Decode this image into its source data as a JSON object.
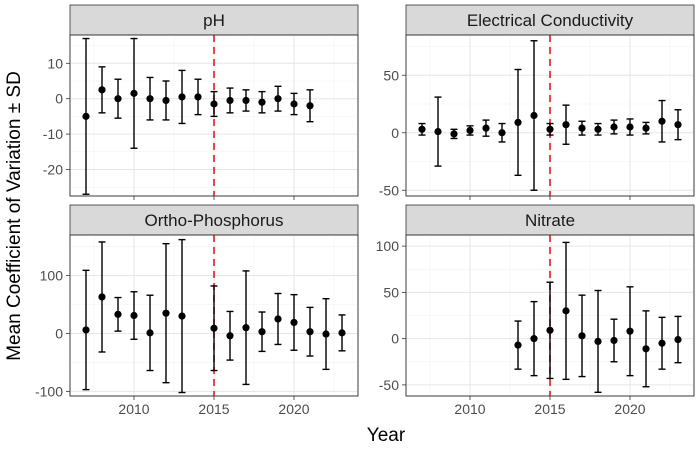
{
  "chart_data": {
    "type": "scatter",
    "xlabel": "Year",
    "ylabel": "Mean Coefficient of Variation ± SD",
    "reference_line": {
      "x": 2015,
      "color": "#e41a1c",
      "style": "dashed"
    },
    "xlim": [
      2006,
      2024
    ],
    "x_ticks": [
      2010,
      2015,
      2020
    ],
    "panels": [
      {
        "title": "pH",
        "ylim": [
          -27.5,
          18
        ],
        "y_ticks": [
          -20,
          -10,
          0,
          10
        ],
        "y_tick_labels": [
          "-20",
          "-10",
          "0",
          "10"
        ],
        "points": [
          {
            "x": 2007,
            "mean": -5,
            "sd": 22
          },
          {
            "x": 2008,
            "mean": 2.5,
            "sd": 6.5
          },
          {
            "x": 2009,
            "mean": 0,
            "sd": 5.5
          },
          {
            "x": 2010,
            "mean": 1.5,
            "sd": 15.5
          },
          {
            "x": 2011,
            "mean": 0,
            "sd": 6
          },
          {
            "x": 2012,
            "mean": -0.5,
            "sd": 5.5
          },
          {
            "x": 2013,
            "mean": 0.5,
            "sd": 7.5
          },
          {
            "x": 2014,
            "mean": 0.5,
            "sd": 5
          },
          {
            "x": 2015,
            "mean": -1.5,
            "sd": 3.5
          },
          {
            "x": 2016,
            "mean": -0.5,
            "sd": 3.5
          },
          {
            "x": 2017,
            "mean": -0.5,
            "sd": 3
          },
          {
            "x": 2018,
            "mean": -1,
            "sd": 3
          },
          {
            "x": 2019,
            "mean": 0,
            "sd": 3.5
          },
          {
            "x": 2020,
            "mean": -1.5,
            "sd": 3
          },
          {
            "x": 2021,
            "mean": -2,
            "sd": 4.5
          }
        ]
      },
      {
        "title": "Electrical Conductivity",
        "ylim": [
          -55,
          85
        ],
        "y_ticks": [
          -50,
          0,
          50
        ],
        "y_tick_labels": [
          "-50",
          "0",
          "50"
        ],
        "points": [
          {
            "x": 2007,
            "mean": 3,
            "sd": 5
          },
          {
            "x": 2008,
            "mean": 1,
            "sd": 30
          },
          {
            "x": 2009,
            "mean": -1,
            "sd": 4
          },
          {
            "x": 2010,
            "mean": 2,
            "sd": 4
          },
          {
            "x": 2011,
            "mean": 4,
            "sd": 7
          },
          {
            "x": 2012,
            "mean": 0,
            "sd": 8
          },
          {
            "x": 2013,
            "mean": 9,
            "sd": 46
          },
          {
            "x": 2014,
            "mean": 15,
            "sd": 65
          },
          {
            "x": 2015,
            "mean": 3,
            "sd": 5
          },
          {
            "x": 2016,
            "mean": 7,
            "sd": 17
          },
          {
            "x": 2017,
            "mean": 4,
            "sd": 6
          },
          {
            "x": 2018,
            "mean": 3,
            "sd": 5
          },
          {
            "x": 2019,
            "mean": 5,
            "sd": 6
          },
          {
            "x": 2020,
            "mean": 5,
            "sd": 7
          },
          {
            "x": 2021,
            "mean": 4,
            "sd": 5
          },
          {
            "x": 2022,
            "mean": 10,
            "sd": 18
          },
          {
            "x": 2023,
            "mean": 7,
            "sd": 13
          }
        ]
      },
      {
        "title": "Ortho-Phosphorus",
        "ylim": [
          -108,
          170
        ],
        "y_ticks": [
          -100,
          0,
          100
        ],
        "y_tick_labels": [
          "-100",
          "0",
          "100"
        ],
        "points": [
          {
            "x": 2007,
            "mean": 6,
            "sd": 103
          },
          {
            "x": 2008,
            "mean": 63,
            "sd": 95
          },
          {
            "x": 2009,
            "mean": 33,
            "sd": 29
          },
          {
            "x": 2010,
            "mean": 31,
            "sd": 41
          },
          {
            "x": 2011,
            "mean": 1,
            "sd": 65
          },
          {
            "x": 2012,
            "mean": 35,
            "sd": 120
          },
          {
            "x": 2013,
            "mean": 30,
            "sd": 132
          },
          {
            "x": 2015,
            "mean": 9,
            "sd": 73
          },
          {
            "x": 2016,
            "mean": -4,
            "sd": 42
          },
          {
            "x": 2017,
            "mean": 10,
            "sd": 98
          },
          {
            "x": 2018,
            "mean": 3,
            "sd": 34
          },
          {
            "x": 2019,
            "mean": 25,
            "sd": 44
          },
          {
            "x": 2020,
            "mean": 19,
            "sd": 48
          },
          {
            "x": 2021,
            "mean": 3,
            "sd": 42
          },
          {
            "x": 2022,
            "mean": -1,
            "sd": 61
          },
          {
            "x": 2023,
            "mean": 1,
            "sd": 31
          }
        ]
      },
      {
        "title": "Nitrate",
        "ylim": [
          -62,
          112
        ],
        "y_ticks": [
          -50,
          0,
          50,
          100
        ],
        "y_tick_labels": [
          "-50",
          "0",
          "50",
          "100"
        ],
        "points": [
          {
            "x": 2013,
            "mean": -7,
            "sd": 26
          },
          {
            "x": 2014,
            "mean": 0,
            "sd": 40
          },
          {
            "x": 2015,
            "mean": 9,
            "sd": 52
          },
          {
            "x": 2016,
            "mean": 30,
            "sd": 74
          },
          {
            "x": 2017,
            "mean": 3,
            "sd": 44
          },
          {
            "x": 2018,
            "mean": -3,
            "sd": 55
          },
          {
            "x": 2019,
            "mean": -2,
            "sd": 23
          },
          {
            "x": 2020,
            "mean": 8,
            "sd": 48
          },
          {
            "x": 2021,
            "mean": -11,
            "sd": 41
          },
          {
            "x": 2022,
            "mean": -5,
            "sd": 28
          },
          {
            "x": 2023,
            "mean": -1,
            "sd": 25
          }
        ]
      }
    ]
  }
}
